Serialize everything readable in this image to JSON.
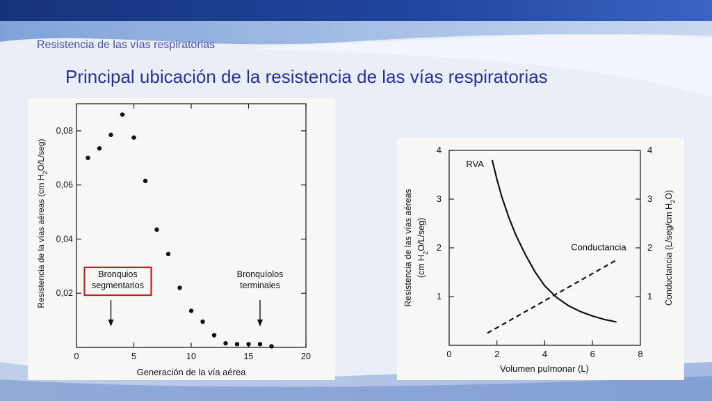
{
  "slide": {
    "subtitle": "Resistencia de las vías respiratorias",
    "title": "Principal ubicación de la resistencia de las vías respiratorias"
  },
  "colors": {
    "title": "#2a2f9a",
    "subtitle": "#4a52b8",
    "header_band": "#1f3f8e",
    "highlight_box": "#c0202a"
  },
  "chart_data": [
    {
      "type": "scatter",
      "title": "",
      "xlabel": "Generación de la vía aérea",
      "ylabel_parts": [
        "Resistencia de la vías aéreas (cm H",
        "2",
        "O/L/seg)"
      ],
      "xlim": [
        0,
        20
      ],
      "ylim": [
        0,
        0.09
      ],
      "xticks": [
        0,
        5,
        10,
        15,
        20
      ],
      "xtick_labels": [
        "0",
        "5",
        "10",
        "15",
        "20"
      ],
      "yticks": [
        0.02,
        0.04,
        0.06,
        0.08
      ],
      "ytick_labels": [
        "0,02",
        "0,04",
        "0,06",
        "0,08"
      ],
      "grid": false,
      "x": [
        1,
        2,
        3,
        4,
        5,
        6,
        7,
        8,
        9,
        10,
        11,
        12,
        13,
        14,
        15,
        16,
        17
      ],
      "y": [
        0.07,
        0.0735,
        0.0785,
        0.086,
        0.0775,
        0.0615,
        0.0435,
        0.0345,
        0.022,
        0.0135,
        0.0095,
        0.0045,
        0.0015,
        0.0012,
        0.0012,
        0.0012,
        0.0004
      ],
      "annotations": [
        {
          "id": "segmentarios",
          "lines": [
            "Bronquios",
            "segmentarios"
          ],
          "x": 3,
          "boxed": true
        },
        {
          "id": "terminales",
          "lines": [
            "Bronquíolos",
            "terminales"
          ],
          "x": 16,
          "boxed": false
        }
      ]
    },
    {
      "type": "line",
      "title": "",
      "xlabel": "Volumen pulmonar (L)",
      "ylabel_left_parts": [
        "Resistencia de las vías aéreas",
        "(cm H",
        "2",
        "O/L/seg)"
      ],
      "ylabel_right_parts": [
        "Conductancia (L/seg/cm H",
        "2",
        "O)"
      ],
      "xlim": [
        0,
        8
      ],
      "ylim": [
        0,
        4
      ],
      "xticks": [
        0,
        2,
        4,
        6,
        8
      ],
      "xtick_labels": [
        "0",
        "2",
        "4",
        "6",
        "8"
      ],
      "yticks": [
        1,
        2,
        3,
        4
      ],
      "ytick_labels": [
        "1",
        "2",
        "3",
        "4"
      ],
      "grid": false,
      "series": [
        {
          "name": "RVA",
          "style": "solid",
          "x": [
            1.8,
            2.0,
            2.2,
            2.5,
            2.8,
            3.2,
            3.6,
            4.0,
            4.5,
            5.0,
            5.5,
            6.0,
            6.5,
            7.0
          ],
          "y": [
            3.8,
            3.4,
            3.05,
            2.62,
            2.25,
            1.85,
            1.5,
            1.22,
            0.98,
            0.81,
            0.69,
            0.6,
            0.53,
            0.48
          ]
        },
        {
          "name": "Conductancia",
          "style": "dashed",
          "x": [
            1.6,
            7.0
          ],
          "y": [
            0.25,
            1.75
          ]
        }
      ]
    }
  ]
}
